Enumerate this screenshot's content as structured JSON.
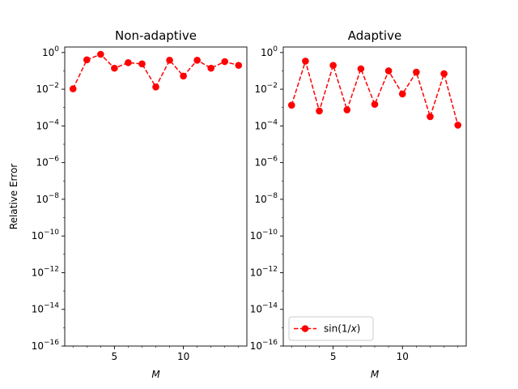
{
  "chart_data": [
    {
      "type": "line",
      "title": "Non-adaptive",
      "xlabel": "M",
      "ylabel": "Relative Error",
      "yscale": "log",
      "xlim": [
        1.4,
        14.6
      ],
      "ylim": [
        1e-16,
        2
      ],
      "xticks": [
        5,
        10
      ],
      "yticks_exponents": [
        0,
        -2,
        -4,
        -6,
        -8,
        -10,
        -12,
        -14,
        -16
      ],
      "grid": false,
      "series": [
        {
          "name": "sin(1/x)",
          "color": "#ff0000",
          "linestyle": "dashed",
          "marker": "circle",
          "x": [
            2,
            3,
            4,
            5,
            6,
            7,
            8,
            9,
            10,
            11,
            12,
            13,
            14
          ],
          "y": [
            0.0105,
            0.4,
            0.8,
            0.14,
            0.28,
            0.24,
            0.0133,
            0.38,
            0.052,
            0.38,
            0.14,
            0.32,
            0.2
          ]
        }
      ]
    },
    {
      "type": "line",
      "title": "Adaptive",
      "xlabel": "M",
      "ylabel": "",
      "yscale": "log",
      "xlim": [
        1.4,
        14.6
      ],
      "ylim": [
        1e-16,
        2
      ],
      "xticks": [
        5,
        10
      ],
      "yticks_exponents": [
        0,
        -2,
        -4,
        -6,
        -8,
        -10,
        -12,
        -14,
        -16
      ],
      "grid": false,
      "legend": {
        "placement": "lower-left",
        "entries": [
          {
            "label": "sin(1/x)",
            "color": "#ff0000",
            "linestyle": "dashed",
            "marker": "circle"
          }
        ]
      },
      "series": [
        {
          "name": "sin(1/x)",
          "color": "#ff0000",
          "linestyle": "dashed",
          "marker": "circle",
          "x": [
            2,
            3,
            4,
            5,
            6,
            7,
            8,
            9,
            10,
            11,
            12,
            13,
            14
          ],
          "y": [
            0.00135,
            0.34,
            0.00065,
            0.2,
            0.00075,
            0.13,
            0.0015,
            0.1,
            0.0055,
            0.085,
            0.00032,
            0.07,
            0.00011
          ]
        }
      ]
    }
  ]
}
